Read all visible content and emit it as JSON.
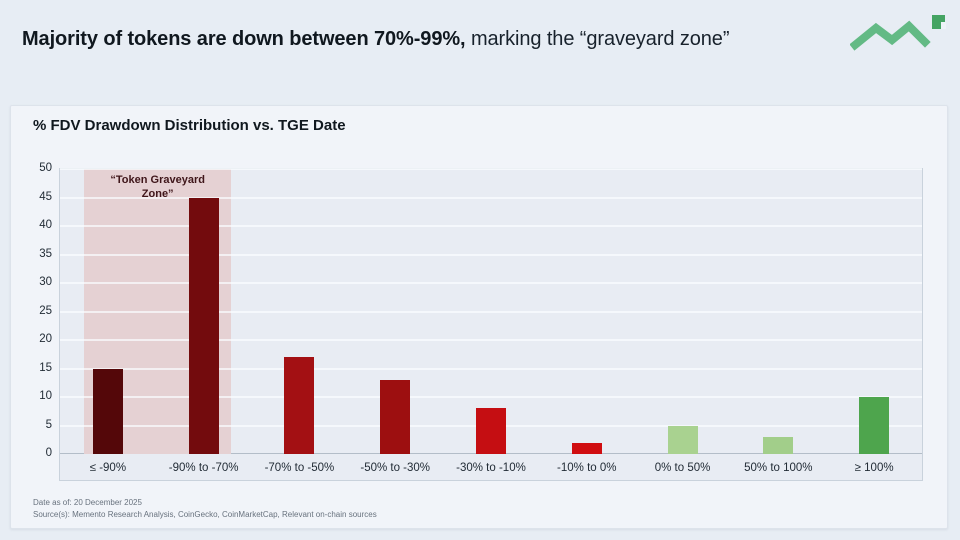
{
  "page": {
    "title_bold": "Majority of tokens are down between 70%-99%,",
    "title_regular": " marking the “graveyard zone”"
  },
  "logo": {
    "name": "memento-zigzag-logo",
    "line_color": "#63ba85",
    "square_color": "#45a463"
  },
  "chart_data": {
    "type": "bar",
    "title": "% FDV Drawdown Distribution vs. TGE Date",
    "categories": [
      "≤ -90%",
      "-90% to -70%",
      "-70% to -50%",
      "-50% to -30%",
      "-30% to -10%",
      "-10% to 0%",
      "0% to 50%",
      "50% to 100%",
      "≥ 100%"
    ],
    "values": [
      15,
      45,
      17,
      13,
      8,
      2,
      5,
      3,
      10
    ],
    "bar_colors": [
      "#540709",
      "#730b0d",
      "#a31013",
      "#9d0f10",
      "#c50e12",
      "#d00d10",
      "#a9d290",
      "#a2ce8a",
      "#4ea54d"
    ],
    "xlabel": "",
    "ylabel": "",
    "ylim": [
      0,
      50
    ],
    "yticks": [
      0,
      5,
      10,
      15,
      20,
      25,
      30,
      35,
      40,
      45,
      50
    ],
    "grid": true,
    "legend": false,
    "annotation_zone": {
      "label": "“Token Graveyard\nZone”",
      "covers_categories": [
        "≤ -90%",
        "-90% to -70%"
      ],
      "fill": "#e5d1d3",
      "label_color": "#3f161a"
    }
  },
  "footer": {
    "date_line": "Date as of: 20 December 2025",
    "source_line": "Source(s): Memento Research Analysis, CoinGecko, CoinMarketCap, Relevant on-chain sources"
  }
}
